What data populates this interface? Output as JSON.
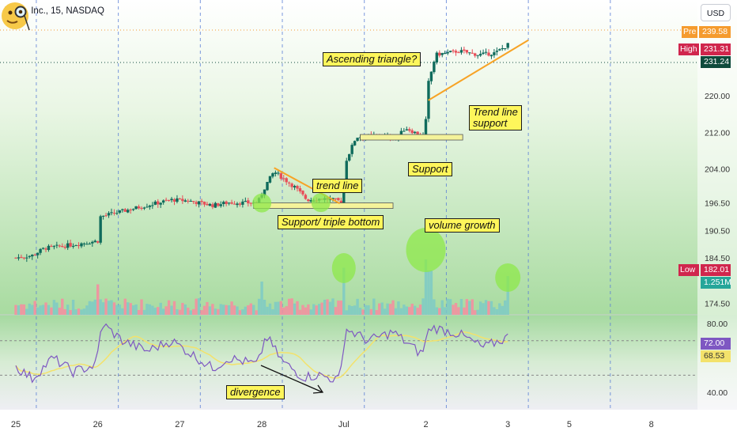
{
  "header": {
    "symbol_title": "Tesla, Inc., 15, NASDAQ",
    "currency_button": "USD"
  },
  "price_tags": {
    "pre_label": "Pre",
    "pre_value": "239.58",
    "high_label": "High",
    "high_value": "231.31",
    "last_value": "231.24",
    "low_label": "Low",
    "low_value": "182.01",
    "volume_value": "1.251M"
  },
  "rsi_tags": {
    "rsi_value": "72.00",
    "ma_value": "68.53"
  },
  "annotations": {
    "ascending_triangle": "Ascending triangle?",
    "trend_line": "trend line",
    "support_triple_bottom": "Support/ triple bottom",
    "support": "Support",
    "trend_line_support": "Trend line\nsupport",
    "volume_growth": "volume growth",
    "divergence": "divergence"
  },
  "colors": {
    "up_candle": "#0f6b5c",
    "down_candle": "#e84f59",
    "up_volume": "#80cbc4",
    "down_volume": "#f48fa0",
    "trend_line": "#f7a325",
    "rsi_line": "#7e57c2",
    "rsi_ma": "#f3e26b",
    "highlight": "#8ee84a",
    "annotation_bg": "#fef65b",
    "bg_top": "#ffffff",
    "bg_bottom": "#a8dba0"
  },
  "chart_data": {
    "type": "candlestick",
    "interval": "15",
    "x_ticks": [
      "25",
      "26",
      "27",
      "28",
      "Jul",
      "2",
      "3",
      "5",
      "8"
    ],
    "price_axis": {
      "ticks": [
        "220.00",
        "212.00",
        "204.00",
        "196.50",
        "190.50",
        "184.50",
        "174.50"
      ],
      "ylim": [
        172,
        241
      ]
    },
    "rsi_axis": {
      "ticks": [
        "80.00",
        "40.00"
      ],
      "ylim": [
        30,
        85
      ]
    },
    "price_anchors": [
      {
        "day": 0.0,
        "close": 184.5
      },
      {
        "day": 0.2,
        "close": 185.0
      },
      {
        "day": 0.35,
        "close": 186.6
      },
      {
        "day": 0.55,
        "close": 187.0
      },
      {
        "day": 1.0,
        "close": 188.2
      },
      {
        "day": 1.03,
        "close": 193.5
      },
      {
        "day": 1.3,
        "close": 194.7
      },
      {
        "day": 1.6,
        "close": 196.0
      },
      {
        "day": 1.9,
        "close": 197.2
      },
      {
        "day": 2.1,
        "close": 197.0
      },
      {
        "day": 2.4,
        "close": 196.0
      },
      {
        "day": 2.6,
        "close": 196.6
      },
      {
        "day": 2.95,
        "close": 196.5
      },
      {
        "day": 3.05,
        "close": 200.5
      },
      {
        "day": 3.15,
        "close": 203.4
      },
      {
        "day": 3.4,
        "close": 200.0
      },
      {
        "day": 3.55,
        "close": 197.2
      },
      {
        "day": 3.75,
        "close": 197.5
      },
      {
        "day": 3.99,
        "close": 196.8
      },
      {
        "day": 4.02,
        "close": 205.5
      },
      {
        "day": 4.15,
        "close": 211.0
      },
      {
        "day": 4.4,
        "close": 211.2
      },
      {
        "day": 4.65,
        "close": 210.8
      },
      {
        "day": 4.75,
        "close": 213.0
      },
      {
        "day": 4.99,
        "close": 210.8
      },
      {
        "day": 5.02,
        "close": 222.0
      },
      {
        "day": 5.12,
        "close": 229.0
      },
      {
        "day": 5.4,
        "close": 229.8
      },
      {
        "day": 5.65,
        "close": 229.0
      },
      {
        "day": 5.85,
        "close": 229.4
      },
      {
        "day": 6.0,
        "close": 231.2
      }
    ],
    "rsi_anchors": [
      {
        "day": 0.0,
        "rsi": 55
      },
      {
        "day": 0.2,
        "rsi": 48
      },
      {
        "day": 0.45,
        "rsi": 60
      },
      {
        "day": 0.7,
        "rsi": 52
      },
      {
        "day": 0.98,
        "rsi": 56
      },
      {
        "day": 1.05,
        "rsi": 80
      },
      {
        "day": 1.3,
        "rsi": 70
      },
      {
        "day": 1.6,
        "rsi": 64
      },
      {
        "day": 1.9,
        "rsi": 70
      },
      {
        "day": 2.4,
        "rsi": 54
      },
      {
        "day": 2.6,
        "rsi": 60
      },
      {
        "day": 2.95,
        "rsi": 56
      },
      {
        "day": 3.05,
        "rsi": 73
      },
      {
        "day": 3.25,
        "rsi": 58
      },
      {
        "day": 3.5,
        "rsi": 49
      },
      {
        "day": 3.7,
        "rsi": 50
      },
      {
        "day": 3.95,
        "rsi": 47
      },
      {
        "day": 4.02,
        "rsi": 77
      },
      {
        "day": 4.3,
        "rsi": 70
      },
      {
        "day": 4.6,
        "rsi": 75
      },
      {
        "day": 4.95,
        "rsi": 62
      },
      {
        "day": 5.05,
        "rsi": 78
      },
      {
        "day": 5.4,
        "rsi": 74
      },
      {
        "day": 5.7,
        "rsi": 66
      },
      {
        "day": 6.0,
        "rsi": 72
      }
    ],
    "volume_spikes": [
      {
        "day": 1.0,
        "value": 0.55
      },
      {
        "day": 2.99,
        "value": 0.6
      },
      {
        "day": 4.0,
        "value": 0.85
      },
      {
        "day": 5.0,
        "value": 1.0
      },
      {
        "day": 5.05,
        "value": 0.8
      },
      {
        "day": 6.0,
        "value": 0.7
      }
    ],
    "horizontal_levels": [
      {
        "name": "support-triple-bottom",
        "day_from": 2.9,
        "day_to": 4.6,
        "price": 196.0
      },
      {
        "name": "support",
        "day_from": 4.2,
        "day_to": 5.45,
        "price": 211.0
      }
    ],
    "trend_lines": [
      {
        "name": "trend-line-down",
        "from": {
          "day": 3.15,
          "price": 204.2
        },
        "to": {
          "day": 3.95,
          "price": 196.4
        }
      },
      {
        "name": "trend-line-support",
        "from": {
          "day": 5.03,
          "price": 219.0
        },
        "to": {
          "day": 6.25,
          "price": 232.2
        }
      }
    ]
  }
}
